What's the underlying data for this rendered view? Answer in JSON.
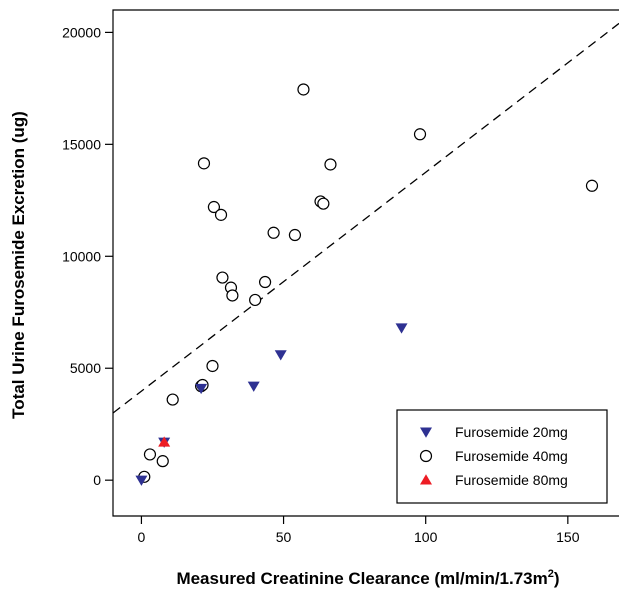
{
  "chart_data": {
    "type": "scatter",
    "xlabel": "Measured Creatinine Clearance (ml/min/1.73m",
    "xlabel_superscript": "2",
    "xlabel_close": ")",
    "ylabel": "Total Urine Furosemide Excretion (ug)",
    "xlim": [
      -10,
      168
    ],
    "ylim": [
      -1600,
      21000
    ],
    "x_ticks": [
      0,
      50,
      100,
      150
    ],
    "y_ticks": [
      0,
      5000,
      10000,
      15000,
      20000
    ],
    "x_tick_labels": [
      "0",
      "50",
      "100",
      "150"
    ],
    "y_tick_labels": [
      "0",
      "5000",
      "10000",
      "15000",
      "20000"
    ],
    "legend_position": "bottom-right",
    "reference_line": {
      "style": "dashed",
      "points": [
        [
          -10,
          3000
        ],
        [
          168,
          20400
        ]
      ]
    },
    "series": [
      {
        "name": "Furosemide 20mg",
        "marker": "triangle-down",
        "color": "#2e3192",
        "points": [
          [
            0,
            0
          ],
          [
            8,
            1700
          ],
          [
            21,
            4100
          ],
          [
            39.5,
            4200
          ],
          [
            49,
            5600
          ],
          [
            91.5,
            6800
          ]
        ]
      },
      {
        "name": "Furosemide 40mg",
        "marker": "circle-open",
        "color": "#000000",
        "points": [
          [
            1,
            150
          ],
          [
            3,
            1150
          ],
          [
            7.5,
            850
          ],
          [
            11,
            3600
          ],
          [
            21,
            4200
          ],
          [
            21.5,
            4250
          ],
          [
            25,
            5100
          ],
          [
            22,
            14150
          ],
          [
            25.5,
            12200
          ],
          [
            28,
            11850
          ],
          [
            28.5,
            9050
          ],
          [
            31.5,
            8600
          ],
          [
            32,
            8250
          ],
          [
            40,
            8050
          ],
          [
            43.5,
            8850
          ],
          [
            46.5,
            11050
          ],
          [
            54,
            10950
          ],
          [
            57,
            17450
          ],
          [
            63,
            12450
          ],
          [
            64,
            12350
          ],
          [
            66.5,
            14100
          ],
          [
            98,
            15450
          ],
          [
            158.5,
            13150
          ]
        ]
      },
      {
        "name": "Furosemide 80mg",
        "marker": "triangle-up",
        "color": "#ed1c24",
        "points": [
          [
            8,
            1700
          ]
        ]
      }
    ]
  }
}
